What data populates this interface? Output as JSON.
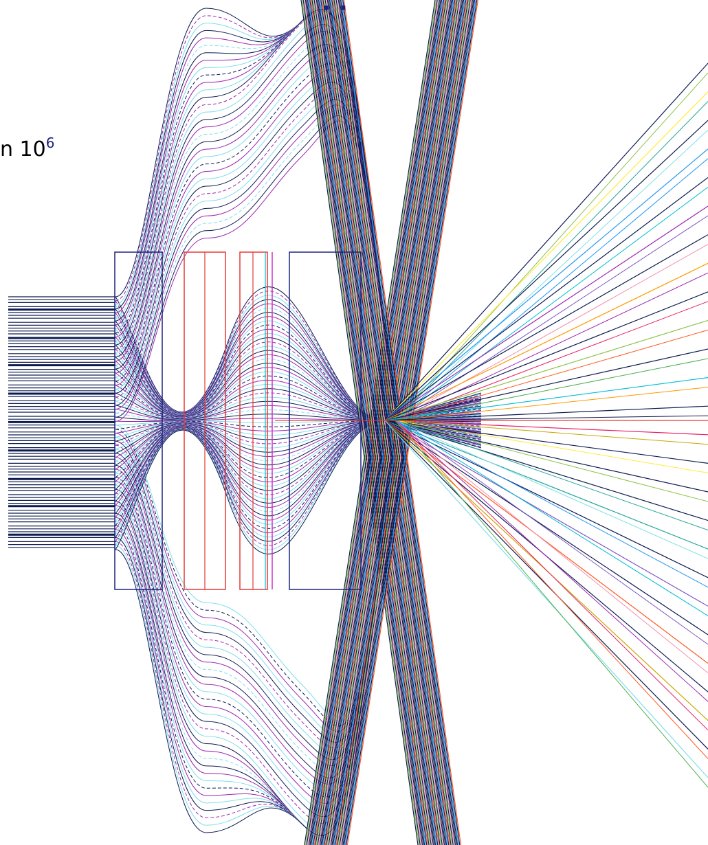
{
  "caption": {
    "text": "n 10",
    "superscript": "6"
  },
  "title_fragment": {
    "text": "· ·"
  },
  "colors": {
    "frame": "#1a237e",
    "red_frame": "#e53935",
    "magenta": "#cc33cc",
    "rays": [
      "#0d1b4f",
      "#e91e63",
      "#00bcd4",
      "#8bc34a",
      "#ff9800",
      "#9c27b0",
      "#2196f3",
      "#ffeb3b",
      "#4caf50",
      "#f48fb1",
      "#80deea",
      "#c6a700",
      "#ff5722",
      "#7e57c2",
      "#26a69a"
    ]
  }
}
